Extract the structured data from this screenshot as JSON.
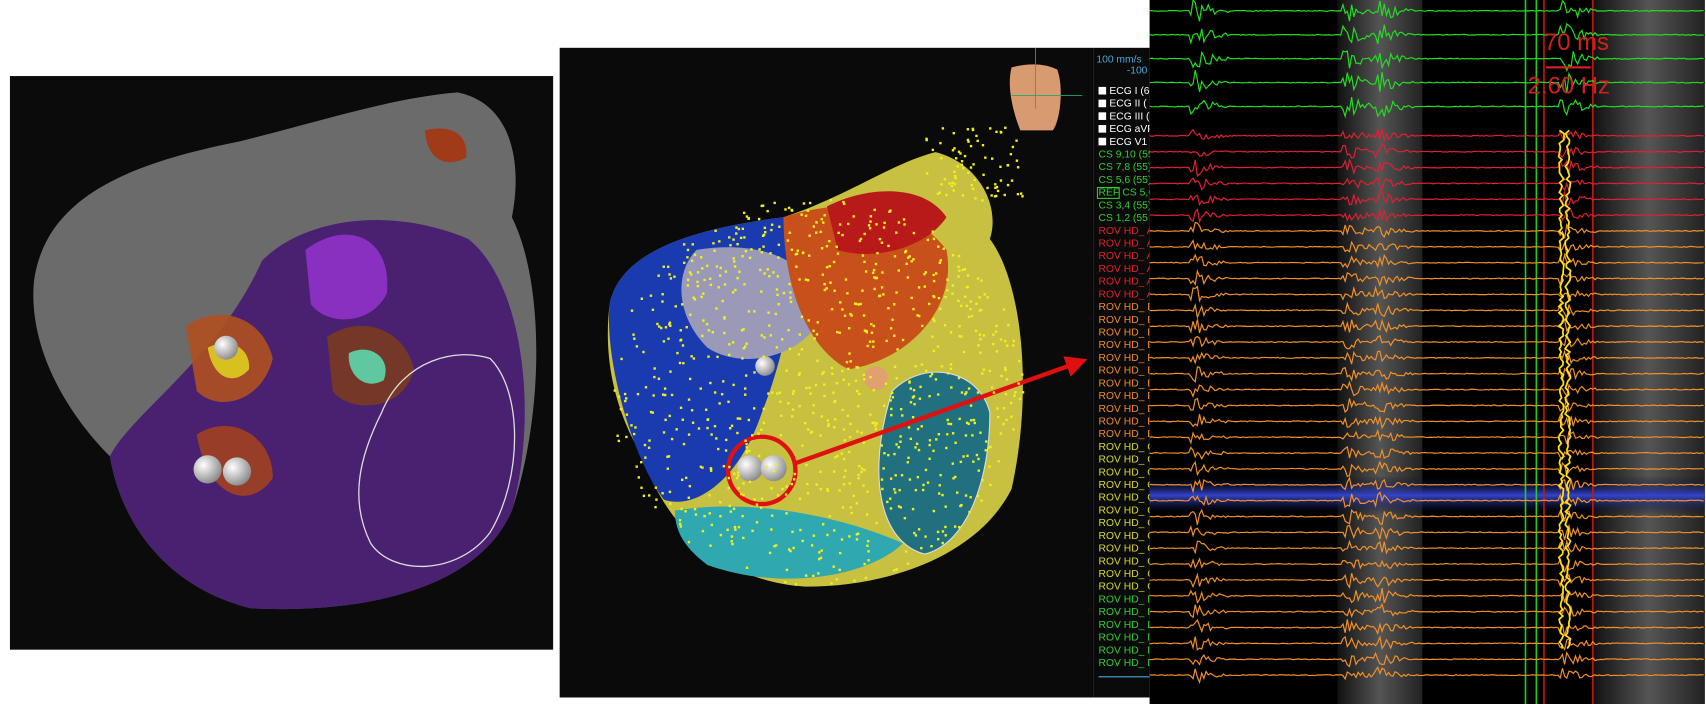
{
  "speed": "100 mm/s",
  "gain": "-100",
  "ref_tag": "REF",
  "annotations": {
    "interval": "70 ms",
    "frequency": "2.60 Hz"
  },
  "channels": [
    {
      "label": "ECG I (6",
      "color": "#ffffff",
      "checked": true
    },
    {
      "label": "ECG II (",
      "color": "#ffffff",
      "checked": true
    },
    {
      "label": "ECG III (",
      "color": "#ffffff",
      "checked": true
    },
    {
      "label": "ECG aVF",
      "color": "#ffffff",
      "checked": true
    },
    {
      "label": "ECG V1",
      "color": "#ffffff",
      "checked": true
    },
    {
      "label": "CS 9,10 (55",
      "color": "#33cc33"
    },
    {
      "label": "CS 7,8 (55)",
      "color": "#33cc33"
    },
    {
      "label": "CS 5,6 (55)",
      "color": "#33cc33"
    },
    {
      "label": "CS 5,6",
      "color": "#33cc33"
    },
    {
      "label": "CS 3,4 (55)",
      "color": "#33cc33"
    },
    {
      "label": "CS 1,2 (55",
      "color": "#33cc33"
    },
    {
      "label": "ROV HD_ A",
      "color": "#e0202a"
    },
    {
      "label": "ROV HD_ A",
      "color": "#e0202a"
    },
    {
      "label": "ROV HD_ A",
      "color": "#e0202a"
    },
    {
      "label": "ROV HD_ A",
      "color": "#e0202a"
    },
    {
      "label": "ROV HD_ A",
      "color": "#e0202a"
    },
    {
      "label": "ROV HD_ A",
      "color": "#e0202a"
    },
    {
      "label": "ROV HD_ B",
      "color": "#f08a2a"
    },
    {
      "label": "ROV HD_ B",
      "color": "#f08a2a"
    },
    {
      "label": "ROV HD_ B",
      "color": "#f08a2a"
    },
    {
      "label": "ROV HD_ B",
      "color": "#f08a2a"
    },
    {
      "label": "ROV HD_ B",
      "color": "#f08a2a"
    },
    {
      "label": "ROV HD_ B",
      "color": "#f08a2a"
    },
    {
      "label": "ROV HD_ B",
      "color": "#f08a2a"
    },
    {
      "label": "ROV HD_ B",
      "color": "#f08a2a"
    },
    {
      "label": "ROV HD_ B",
      "color": "#f08a2a"
    },
    {
      "label": "ROV HD_ B",
      "color": "#f08a2a"
    },
    {
      "label": "ROV HD_ B",
      "color": "#f08a2a"
    },
    {
      "label": "ROV HD_ C",
      "color": "#d8d830"
    },
    {
      "label": "ROV HD_ C",
      "color": "#d8d830"
    },
    {
      "label": "ROV HD_ C",
      "color": "#d8d830"
    },
    {
      "label": "ROV HD_ C",
      "color": "#d8d830"
    },
    {
      "label": "ROV HD_ C",
      "color": "#d8d830"
    },
    {
      "label": "ROV HD_ C",
      "color": "#d8d830"
    },
    {
      "label": "ROV HD_ C",
      "color": "#d8d830"
    },
    {
      "label": "ROV HD_ C",
      "color": "#d8d830"
    },
    {
      "label": "ROV HD_ C",
      "color": "#d8d830"
    },
    {
      "label": "ROV HD_ C",
      "color": "#d8d830"
    },
    {
      "label": "ROV HD_ C",
      "color": "#d8d830"
    },
    {
      "label": "ROV HD_ C",
      "color": "#d8d830"
    },
    {
      "label": "ROV HD_ D",
      "color": "#33cc33"
    },
    {
      "label": "ROV HD_ D",
      "color": "#33cc33"
    },
    {
      "label": "ROV HD_ D",
      "color": "#33cc33"
    },
    {
      "label": "ROV HD_ D",
      "color": "#33cc33"
    },
    {
      "label": "ROV HD_ D",
      "color": "#33cc33"
    },
    {
      "label": "ROV HD_ D",
      "color": "#33cc33"
    }
  ]
}
